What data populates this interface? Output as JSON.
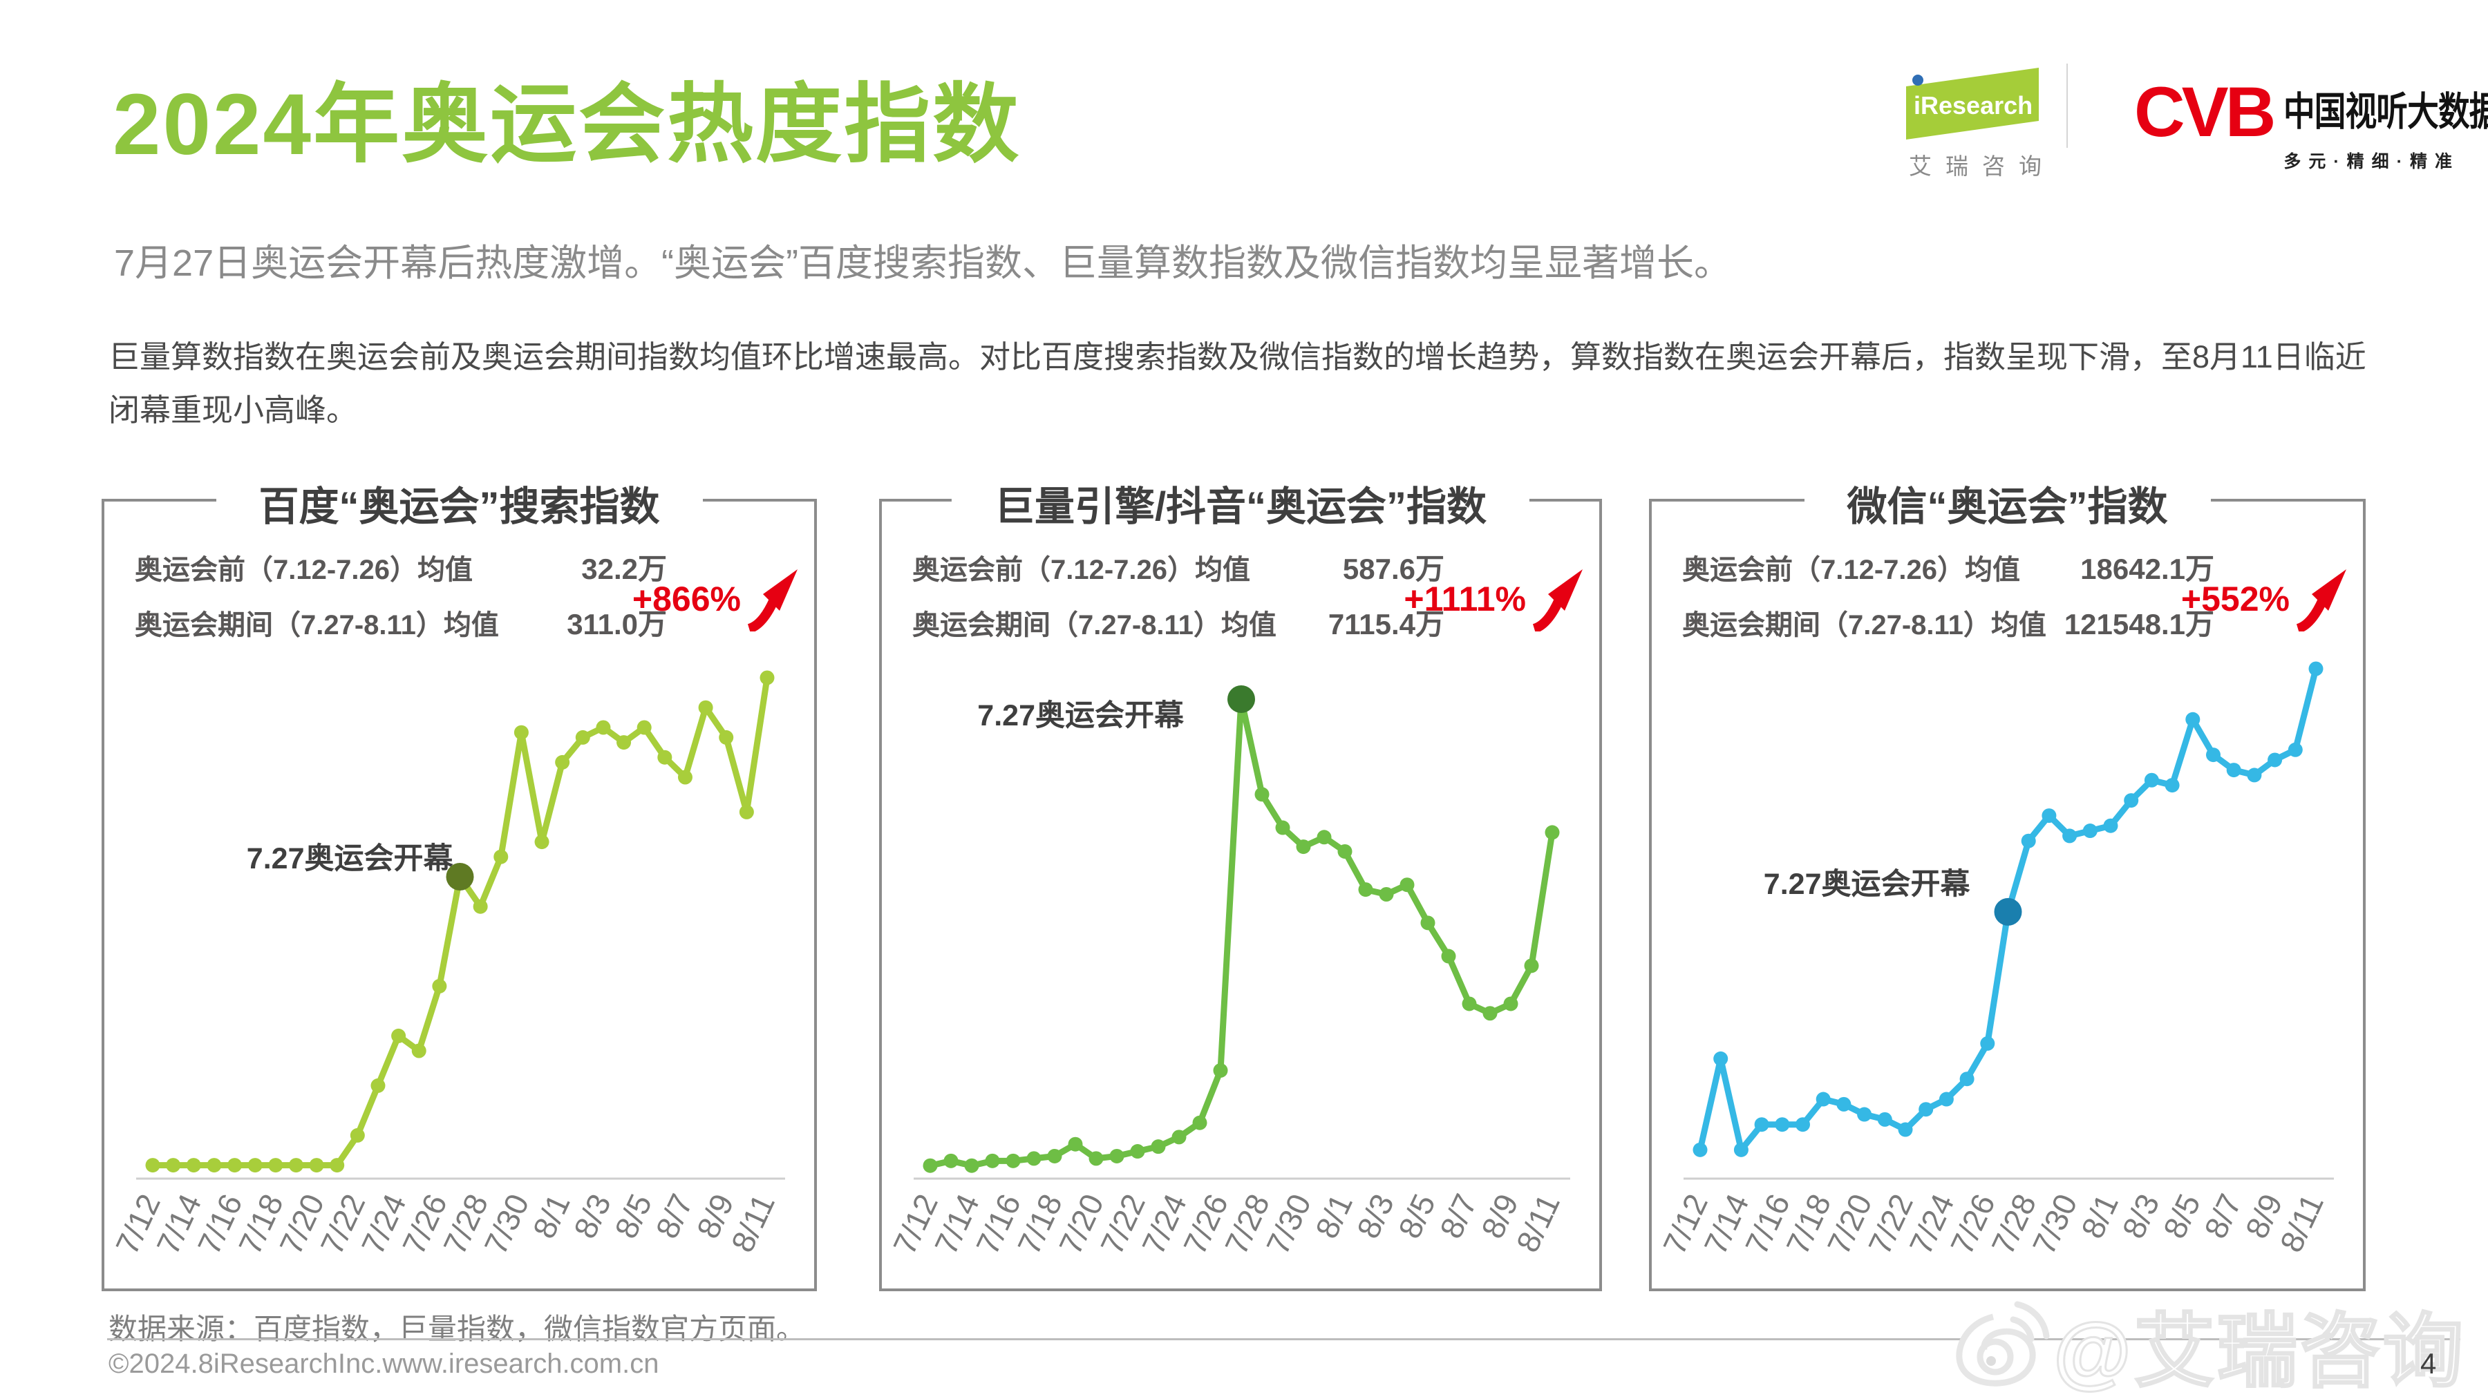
{
  "page": {
    "title": "2024年奥运会热度指数",
    "subtitle": "7月27日奥运会开幕后热度激增。“奥运会”百度搜索指数、巨量算数指数及微信指数均呈显著增长。",
    "paragraph": "巨量算数指数在奥运会前及奥运会期间指数均值环比增速最高。对比百度搜索指数及微信指数的增长趋势，算数指数在奥运会开幕后，指数呈现下滑，至8月11日临近闭幕重现小高峰。",
    "source": "数据来源：百度指数，巨量指数，微信指数官方页面。",
    "copyright": "©2024.8iResearchInc.www.iresearch.com.cn",
    "page_number": "4",
    "watermark": "@艾瑞咨询"
  },
  "logos": {
    "iresearch": "iResearch",
    "iresearch_cn": "艾瑞咨询",
    "cvb": "CVB",
    "cvb_cn": "中国视听大数据",
    "cvb_tagline": "多元·精细·精准"
  },
  "colors": {
    "title_green": "#8ec53f",
    "baidu_line": "#a8ce3b",
    "baidu_highlight": "#5f7a23",
    "douyin_line": "#6ebe45",
    "douyin_highlight": "#3a7a2d",
    "wechat_line": "#35b8e5",
    "wechat_highlight": "#1a7fae",
    "growth_red": "#e60012"
  },
  "chart_data": [
    {
      "type": "line",
      "title": "百度“奥运会”搜索指数",
      "stats": [
        {
          "label": "奥运会前（7.12-7.26）均值",
          "value": "32.2万"
        },
        {
          "label": "奥运会期间（7.27-8.11）均值",
          "value": "311.0万"
        }
      ],
      "growth": "+866%",
      "annotation": "7.27奥运会开幕",
      "x": [
        "7/12",
        "7/13",
        "7/14",
        "7/15",
        "7/16",
        "7/17",
        "7/18",
        "7/19",
        "7/20",
        "7/21",
        "7/22",
        "7/23",
        "7/24",
        "7/25",
        "7/26",
        "7/27",
        "7/28",
        "7/29",
        "7/30",
        "7/31",
        "8/1",
        "8/2",
        "8/3",
        "8/4",
        "8/5",
        "8/6",
        "8/7",
        "8/8",
        "8/9",
        "8/10",
        "8/11"
      ],
      "tick_every": 2,
      "values": [
        2,
        2,
        2,
        2,
        2,
        2,
        2,
        2,
        2,
        2,
        8,
        18,
        28,
        25,
        38,
        60,
        54,
        64,
        89,
        67,
        83,
        88,
        90,
        87,
        90,
        84,
        80,
        94,
        88,
        73,
        100
      ],
      "highlight_index": 15,
      "line_color": "#a8ce3b",
      "highlight_color": "#5f7a23",
      "ylim": [
        0,
        100
      ],
      "y_note": "relative index (no y axis shown)"
    },
    {
      "type": "line",
      "title": "巨量引擎/抖音“奥运会”指数",
      "stats": [
        {
          "label": "奥运会前（7.12-7.26）均值",
          "value": "587.6万"
        },
        {
          "label": "奥运会期间（7.27-8.11）均值",
          "value": "7115.4万"
        }
      ],
      "growth": "+1111%",
      "annotation": "7.27奥运会开幕",
      "x": [
        "7/12",
        "7/13",
        "7/14",
        "7/15",
        "7/16",
        "7/17",
        "7/18",
        "7/19",
        "7/20",
        "7/21",
        "7/22",
        "7/23",
        "7/24",
        "7/25",
        "7/26",
        "7/27",
        "7/28",
        "7/29",
        "7/30",
        "7/31",
        "8/1",
        "8/2",
        "8/3",
        "8/4",
        "8/5",
        "8/6",
        "8/7",
        "8/8",
        "8/9",
        "8/10",
        "8/11"
      ],
      "tick_every": 2,
      "values": [
        2,
        3,
        2,
        3,
        3,
        3.5,
        4,
        6.5,
        3.5,
        4,
        5,
        6,
        8,
        11,
        22,
        100,
        80,
        73,
        69,
        71,
        68,
        60,
        59,
        61,
        53,
        46,
        36,
        34,
        36,
        44,
        72
      ],
      "highlight_index": 15,
      "line_color": "#6ebe45",
      "highlight_color": "#3a7a2d",
      "ylim": [
        0,
        100
      ],
      "y_note": "relative index (no y axis shown)"
    },
    {
      "type": "line",
      "title": "微信“奥运会”指数",
      "stats": [
        {
          "label": "奥运会前（7.12-7.26）均值",
          "value": "18642.1万"
        },
        {
          "label": "奥运会期间（7.27-8.11）均值",
          "value": "121548.1万"
        }
      ],
      "growth": "+552%",
      "annotation": "7.27奥运会开幕",
      "x": [
        "7/12",
        "7/13",
        "7/14",
        "7/15",
        "7/16",
        "7/17",
        "7/18",
        "7/19",
        "7/20",
        "7/21",
        "7/22",
        "7/23",
        "7/24",
        "7/25",
        "7/26",
        "7/27",
        "7/28",
        "7/29",
        "7/30",
        "7/31",
        "8/1",
        "8/2",
        "8/3",
        "8/4",
        "8/5",
        "8/6",
        "8/7",
        "8/8",
        "8/9",
        "8/10",
        "8/11"
      ],
      "tick_every": 2,
      "values": [
        5,
        23,
        5,
        10,
        10,
        10,
        15,
        14,
        12,
        11,
        9,
        13,
        15,
        19,
        26,
        52,
        66,
        71,
        67,
        68,
        69,
        74,
        78,
        77,
        90,
        83,
        80,
        79,
        82,
        84,
        100
      ],
      "highlight_index": 15,
      "line_color": "#35b8e5",
      "highlight_color": "#1a7fae",
      "ylim": [
        0,
        100
      ],
      "y_note": "relative index (no y axis shown)"
    }
  ]
}
